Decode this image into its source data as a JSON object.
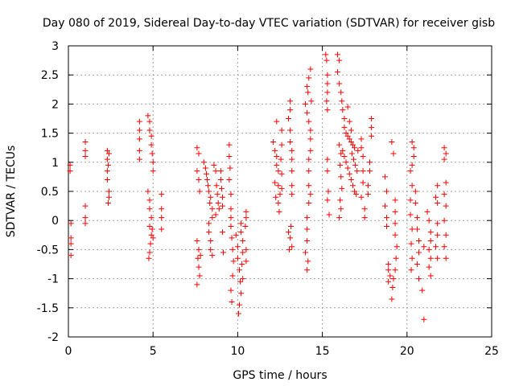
{
  "chart_data": {
    "type": "scatter",
    "title": "Day 080 of 2019, Sidereal Day-to-day VTEC variation (SDTVAR) for receiver gisb",
    "xlabel": "GPS time / hours",
    "ylabel": "SDTVAR / TECUs",
    "xlim": [
      0,
      25
    ],
    "ylim": [
      -2,
      3
    ],
    "xticks": [
      "0",
      "5",
      "10",
      "15",
      "20",
      "25"
    ],
    "yticks": [
      "-2",
      "-1.5",
      "-1",
      "-0.5",
      "0",
      "0.5",
      "1",
      "1.5",
      "2",
      "2.5",
      "3"
    ],
    "grid": true,
    "marker": "+",
    "color": "#ff0000",
    "series": [
      {
        "points": [
          [
            0.1,
            0.95
          ],
          [
            0.1,
            0.85
          ],
          [
            0.15,
            -0.05
          ],
          [
            0.15,
            -0.3
          ],
          [
            0.15,
            -0.4
          ],
          [
            0.15,
            -0.6
          ],
          [
            1.0,
            1.35
          ],
          [
            1.0,
            1.2
          ],
          [
            1.0,
            1.1
          ],
          [
            1.0,
            0.25
          ],
          [
            1.0,
            0.05
          ],
          [
            1.0,
            -0.05
          ],
          [
            2.3,
            1.2
          ],
          [
            2.3,
            1.05
          ],
          [
            2.3,
            0.85
          ],
          [
            2.3,
            0.7
          ],
          [
            2.4,
            0.5
          ],
          [
            2.4,
            0.4
          ],
          [
            2.35,
            0.3
          ],
          [
            2.4,
            1.15
          ],
          [
            2.35,
            0.95
          ],
          [
            4.2,
            1.7
          ],
          [
            4.2,
            1.55
          ],
          [
            4.2,
            1.4
          ],
          [
            4.2,
            1.2
          ],
          [
            4.2,
            1.05
          ],
          [
            4.7,
            1.8
          ],
          [
            4.8,
            1.7
          ],
          [
            4.8,
            1.55
          ],
          [
            4.9,
            1.45
          ],
          [
            4.9,
            1.3
          ],
          [
            4.95,
            1.15
          ],
          [
            5.0,
            1.0
          ],
          [
            5.0,
            0.85
          ],
          [
            4.7,
            0.5
          ],
          [
            4.8,
            0.35
          ],
          [
            4.8,
            0.2
          ],
          [
            4.9,
            0.05
          ],
          [
            4.8,
            -0.1
          ],
          [
            4.9,
            -0.25
          ],
          [
            4.85,
            -0.4
          ],
          [
            4.8,
            -0.55
          ],
          [
            4.75,
            -0.65
          ],
          [
            5.0,
            -0.3
          ],
          [
            4.95,
            -0.15
          ],
          [
            5.5,
            0.45
          ],
          [
            5.5,
            0.2
          ],
          [
            5.5,
            0.05
          ],
          [
            5.5,
            -0.15
          ],
          [
            7.6,
            1.25
          ],
          [
            7.7,
            1.15
          ],
          [
            7.6,
            0.85
          ],
          [
            7.7,
            0.7
          ],
          [
            7.75,
            0.5
          ],
          [
            7.6,
            -0.35
          ],
          [
            7.7,
            -0.5
          ],
          [
            7.65,
            -0.65
          ],
          [
            7.7,
            -0.8
          ],
          [
            7.75,
            -0.95
          ],
          [
            7.6,
            -1.1
          ],
          [
            7.8,
            -0.6
          ],
          [
            8.0,
            1.0
          ],
          [
            8.1,
            0.9
          ],
          [
            8.15,
            0.8
          ],
          [
            8.2,
            0.7
          ],
          [
            8.25,
            0.6
          ],
          [
            8.3,
            0.5
          ],
          [
            8.4,
            0.4
          ],
          [
            8.35,
            0.3
          ],
          [
            8.5,
            0.2
          ],
          [
            8.5,
            0.05
          ],
          [
            8.3,
            -0.05
          ],
          [
            8.3,
            -0.2
          ],
          [
            8.4,
            -0.35
          ],
          [
            8.4,
            -0.5
          ],
          [
            8.5,
            -0.6
          ],
          [
            8.6,
            0.95
          ],
          [
            8.7,
            0.85
          ],
          [
            8.75,
            0.6
          ],
          [
            8.8,
            0.45
          ],
          [
            8.85,
            0.3
          ],
          [
            8.9,
            0.2
          ],
          [
            8.7,
            0.1
          ],
          [
            9.0,
            0.85
          ],
          [
            9.0,
            0.7
          ],
          [
            9.05,
            0.55
          ],
          [
            9.1,
            0.4
          ],
          [
            9.1,
            0.25
          ],
          [
            9.15,
            -0.55
          ],
          [
            9.1,
            -0.2
          ],
          [
            9.5,
            1.3
          ],
          [
            9.5,
            1.1
          ],
          [
            9.55,
            0.9
          ],
          [
            9.5,
            0.7
          ],
          [
            9.6,
            0.45
          ],
          [
            9.6,
            0.2
          ],
          [
            9.6,
            0.05
          ],
          [
            9.6,
            -0.1
          ],
          [
            9.65,
            -0.3
          ],
          [
            9.7,
            -0.5
          ],
          [
            9.75,
            -0.7
          ],
          [
            9.7,
            -0.95
          ],
          [
            9.6,
            -1.2
          ],
          [
            9.65,
            -1.4
          ],
          [
            9.9,
            -0.25
          ],
          [
            10.0,
            -0.45
          ],
          [
            10.0,
            -0.65
          ],
          [
            10.1,
            -0.85
          ],
          [
            10.15,
            -1.05
          ],
          [
            10.2,
            -1.25
          ],
          [
            10.1,
            -1.45
          ],
          [
            10.05,
            -1.6
          ],
          [
            10.2,
            -0.2
          ],
          [
            10.3,
            -0.35
          ],
          [
            10.3,
            -0.55
          ],
          [
            10.25,
            -0.75
          ],
          [
            10.3,
            -1.0
          ],
          [
            10.2,
            -0.05
          ],
          [
            10.5,
            0.15
          ],
          [
            10.5,
            0.05
          ],
          [
            10.45,
            -0.1
          ],
          [
            10.5,
            -0.5
          ],
          [
            10.5,
            -0.7
          ],
          [
            12.1,
            1.35
          ],
          [
            12.2,
            1.2
          ],
          [
            12.3,
            1.1
          ],
          [
            12.3,
            0.95
          ],
          [
            12.4,
            0.85
          ],
          [
            12.4,
            0.6
          ],
          [
            12.5,
            0.45
          ],
          [
            12.4,
            0.3
          ],
          [
            12.45,
            0.15
          ],
          [
            12.6,
            1.55
          ],
          [
            12.6,
            1.3
          ],
          [
            12.55,
            1.05
          ],
          [
            12.6,
            0.8
          ],
          [
            12.6,
            0.55
          ],
          [
            12.3,
            1.7
          ],
          [
            12.2,
            0.65
          ],
          [
            12.25,
            0.4
          ],
          [
            13.1,
            2.05
          ],
          [
            13.1,
            1.9
          ],
          [
            13.0,
            1.75
          ],
          [
            13.1,
            1.55
          ],
          [
            13.1,
            1.35
          ],
          [
            13.2,
            1.2
          ],
          [
            13.2,
            1.05
          ],
          [
            13.2,
            0.85
          ],
          [
            13.2,
            0.6
          ],
          [
            13.2,
            0.45
          ],
          [
            13.0,
            -0.2
          ],
          [
            13.1,
            -0.3
          ],
          [
            13.2,
            -0.45
          ],
          [
            13.05,
            -0.5
          ],
          [
            13.15,
            -0.1
          ],
          [
            14.0,
            2.0
          ],
          [
            14.1,
            1.85
          ],
          [
            14.2,
            1.7
          ],
          [
            14.3,
            1.55
          ],
          [
            14.3,
            1.4
          ],
          [
            14.3,
            1.2
          ],
          [
            14.2,
            1.05
          ],
          [
            14.2,
            0.85
          ],
          [
            14.2,
            0.6
          ],
          [
            14.3,
            0.45
          ],
          [
            14.2,
            0.3
          ],
          [
            14.1,
            2.3
          ],
          [
            14.2,
            2.45
          ],
          [
            14.3,
            2.6
          ],
          [
            14.15,
            2.2
          ],
          [
            14.35,
            2.05
          ],
          [
            14.1,
            0.05
          ],
          [
            14.1,
            -0.15
          ],
          [
            14.1,
            -0.35
          ],
          [
            14.0,
            -0.55
          ],
          [
            14.15,
            -0.7
          ],
          [
            14.1,
            -0.85
          ],
          [
            15.2,
            2.85
          ],
          [
            15.25,
            2.75
          ],
          [
            15.3,
            2.5
          ],
          [
            15.3,
            2.35
          ],
          [
            15.3,
            2.2
          ],
          [
            15.25,
            2.05
          ],
          [
            15.3,
            1.9
          ],
          [
            15.3,
            1.05
          ],
          [
            15.3,
            0.85
          ],
          [
            15.35,
            0.5
          ],
          [
            15.3,
            0.35
          ],
          [
            15.4,
            0.1
          ],
          [
            15.9,
            2.85
          ],
          [
            16.0,
            2.75
          ],
          [
            15.9,
            2.55
          ],
          [
            16.0,
            2.35
          ],
          [
            16.1,
            2.2
          ],
          [
            16.15,
            2.05
          ],
          [
            16.2,
            1.9
          ],
          [
            16.3,
            1.75
          ],
          [
            16.3,
            1.6
          ],
          [
            16.4,
            1.5
          ],
          [
            16.5,
            1.45
          ],
          [
            16.6,
            1.4
          ],
          [
            16.7,
            1.35
          ],
          [
            16.8,
            1.3
          ],
          [
            16.9,
            1.25
          ],
          [
            16.2,
            1.2
          ],
          [
            16.3,
            1.1
          ],
          [
            16.4,
            1.0
          ],
          [
            16.5,
            0.9
          ],
          [
            16.6,
            0.8
          ],
          [
            16.7,
            0.7
          ],
          [
            16.8,
            0.6
          ],
          [
            16.9,
            0.5
          ],
          [
            17.0,
            0.45
          ],
          [
            16.0,
            1.3
          ],
          [
            16.1,
            1.15
          ],
          [
            16.05,
            0.95
          ],
          [
            16.1,
            0.75
          ],
          [
            16.15,
            0.55
          ],
          [
            16.05,
            0.35
          ],
          [
            16.1,
            0.2
          ],
          [
            16.0,
            0.05
          ],
          [
            16.5,
            1.95
          ],
          [
            16.6,
            1.7
          ],
          [
            16.7,
            1.55
          ],
          [
            16.75,
            1.15
          ],
          [
            16.85,
            1.05
          ],
          [
            16.95,
            0.95
          ],
          [
            17.05,
            0.85
          ],
          [
            17.1,
            1.2
          ],
          [
            17.3,
            1.4
          ],
          [
            17.3,
            1.25
          ],
          [
            17.4,
            1.1
          ],
          [
            17.4,
            0.85
          ],
          [
            17.4,
            0.65
          ],
          [
            17.3,
            0.4
          ],
          [
            17.5,
            0.2
          ],
          [
            17.5,
            0.05
          ],
          [
            17.8,
            1.0
          ],
          [
            17.8,
            0.85
          ],
          [
            17.7,
            0.6
          ],
          [
            17.7,
            0.45
          ],
          [
            17.9,
            1.75
          ],
          [
            17.9,
            1.6
          ],
          [
            17.9,
            1.45
          ],
          [
            18.7,
            0.75
          ],
          [
            18.8,
            0.5
          ],
          [
            18.7,
            0.25
          ],
          [
            18.8,
            0.05
          ],
          [
            18.8,
            -0.1
          ],
          [
            18.9,
            -0.75
          ],
          [
            18.9,
            -0.85
          ],
          [
            19.0,
            -0.95
          ],
          [
            18.9,
            -1.05
          ],
          [
            19.1,
            1.35
          ],
          [
            19.2,
            1.15
          ],
          [
            19.3,
            0.35
          ],
          [
            19.3,
            0.15
          ],
          [
            19.3,
            -0.05
          ],
          [
            19.3,
            -0.25
          ],
          [
            19.4,
            -0.45
          ],
          [
            19.35,
            -0.65
          ],
          [
            19.3,
            -0.85
          ],
          [
            19.2,
            -1.0
          ],
          [
            19.15,
            -1.15
          ],
          [
            19.1,
            -1.35
          ],
          [
            20.2,
            0.85
          ],
          [
            20.3,
            0.6
          ],
          [
            20.2,
            0.35
          ],
          [
            20.2,
            0.1
          ],
          [
            20.3,
            -0.15
          ],
          [
            20.25,
            -0.4
          ],
          [
            20.3,
            -0.65
          ],
          [
            20.25,
            -0.85
          ],
          [
            20.3,
            1.35
          ],
          [
            20.4,
            1.25
          ],
          [
            20.4,
            1.1
          ],
          [
            20.3,
            0.95
          ],
          [
            20.5,
            0.5
          ],
          [
            20.5,
            0.3
          ],
          [
            20.6,
            0.05
          ],
          [
            20.6,
            -0.15
          ],
          [
            20.7,
            -0.35
          ],
          [
            20.7,
            -0.55
          ],
          [
            20.6,
            -0.75
          ],
          [
            20.7,
            -1.0
          ],
          [
            21.0,
            -0.45
          ],
          [
            20.9,
            -1.2
          ],
          [
            21.0,
            -1.7
          ],
          [
            21.2,
            0.15
          ],
          [
            21.3,
            0.0
          ],
          [
            21.4,
            -0.2
          ],
          [
            21.4,
            -0.35
          ],
          [
            21.3,
            -0.5
          ],
          [
            21.4,
            -0.65
          ],
          [
            21.3,
            -0.8
          ],
          [
            21.4,
            -0.95
          ],
          [
            21.8,
            0.6
          ],
          [
            21.7,
            0.4
          ],
          [
            21.8,
            0.3
          ],
          [
            21.8,
            -0.05
          ],
          [
            21.8,
            -0.25
          ],
          [
            21.7,
            -0.45
          ],
          [
            21.8,
            -0.65
          ],
          [
            22.2,
            1.25
          ],
          [
            22.3,
            1.15
          ],
          [
            22.2,
            1.05
          ],
          [
            22.3,
            0.65
          ],
          [
            22.2,
            0.45
          ],
          [
            22.3,
            0.25
          ],
          [
            22.2,
            0.0
          ],
          [
            22.3,
            -0.25
          ],
          [
            22.2,
            -0.45
          ],
          [
            22.3,
            -0.65
          ]
        ]
      }
    ]
  }
}
